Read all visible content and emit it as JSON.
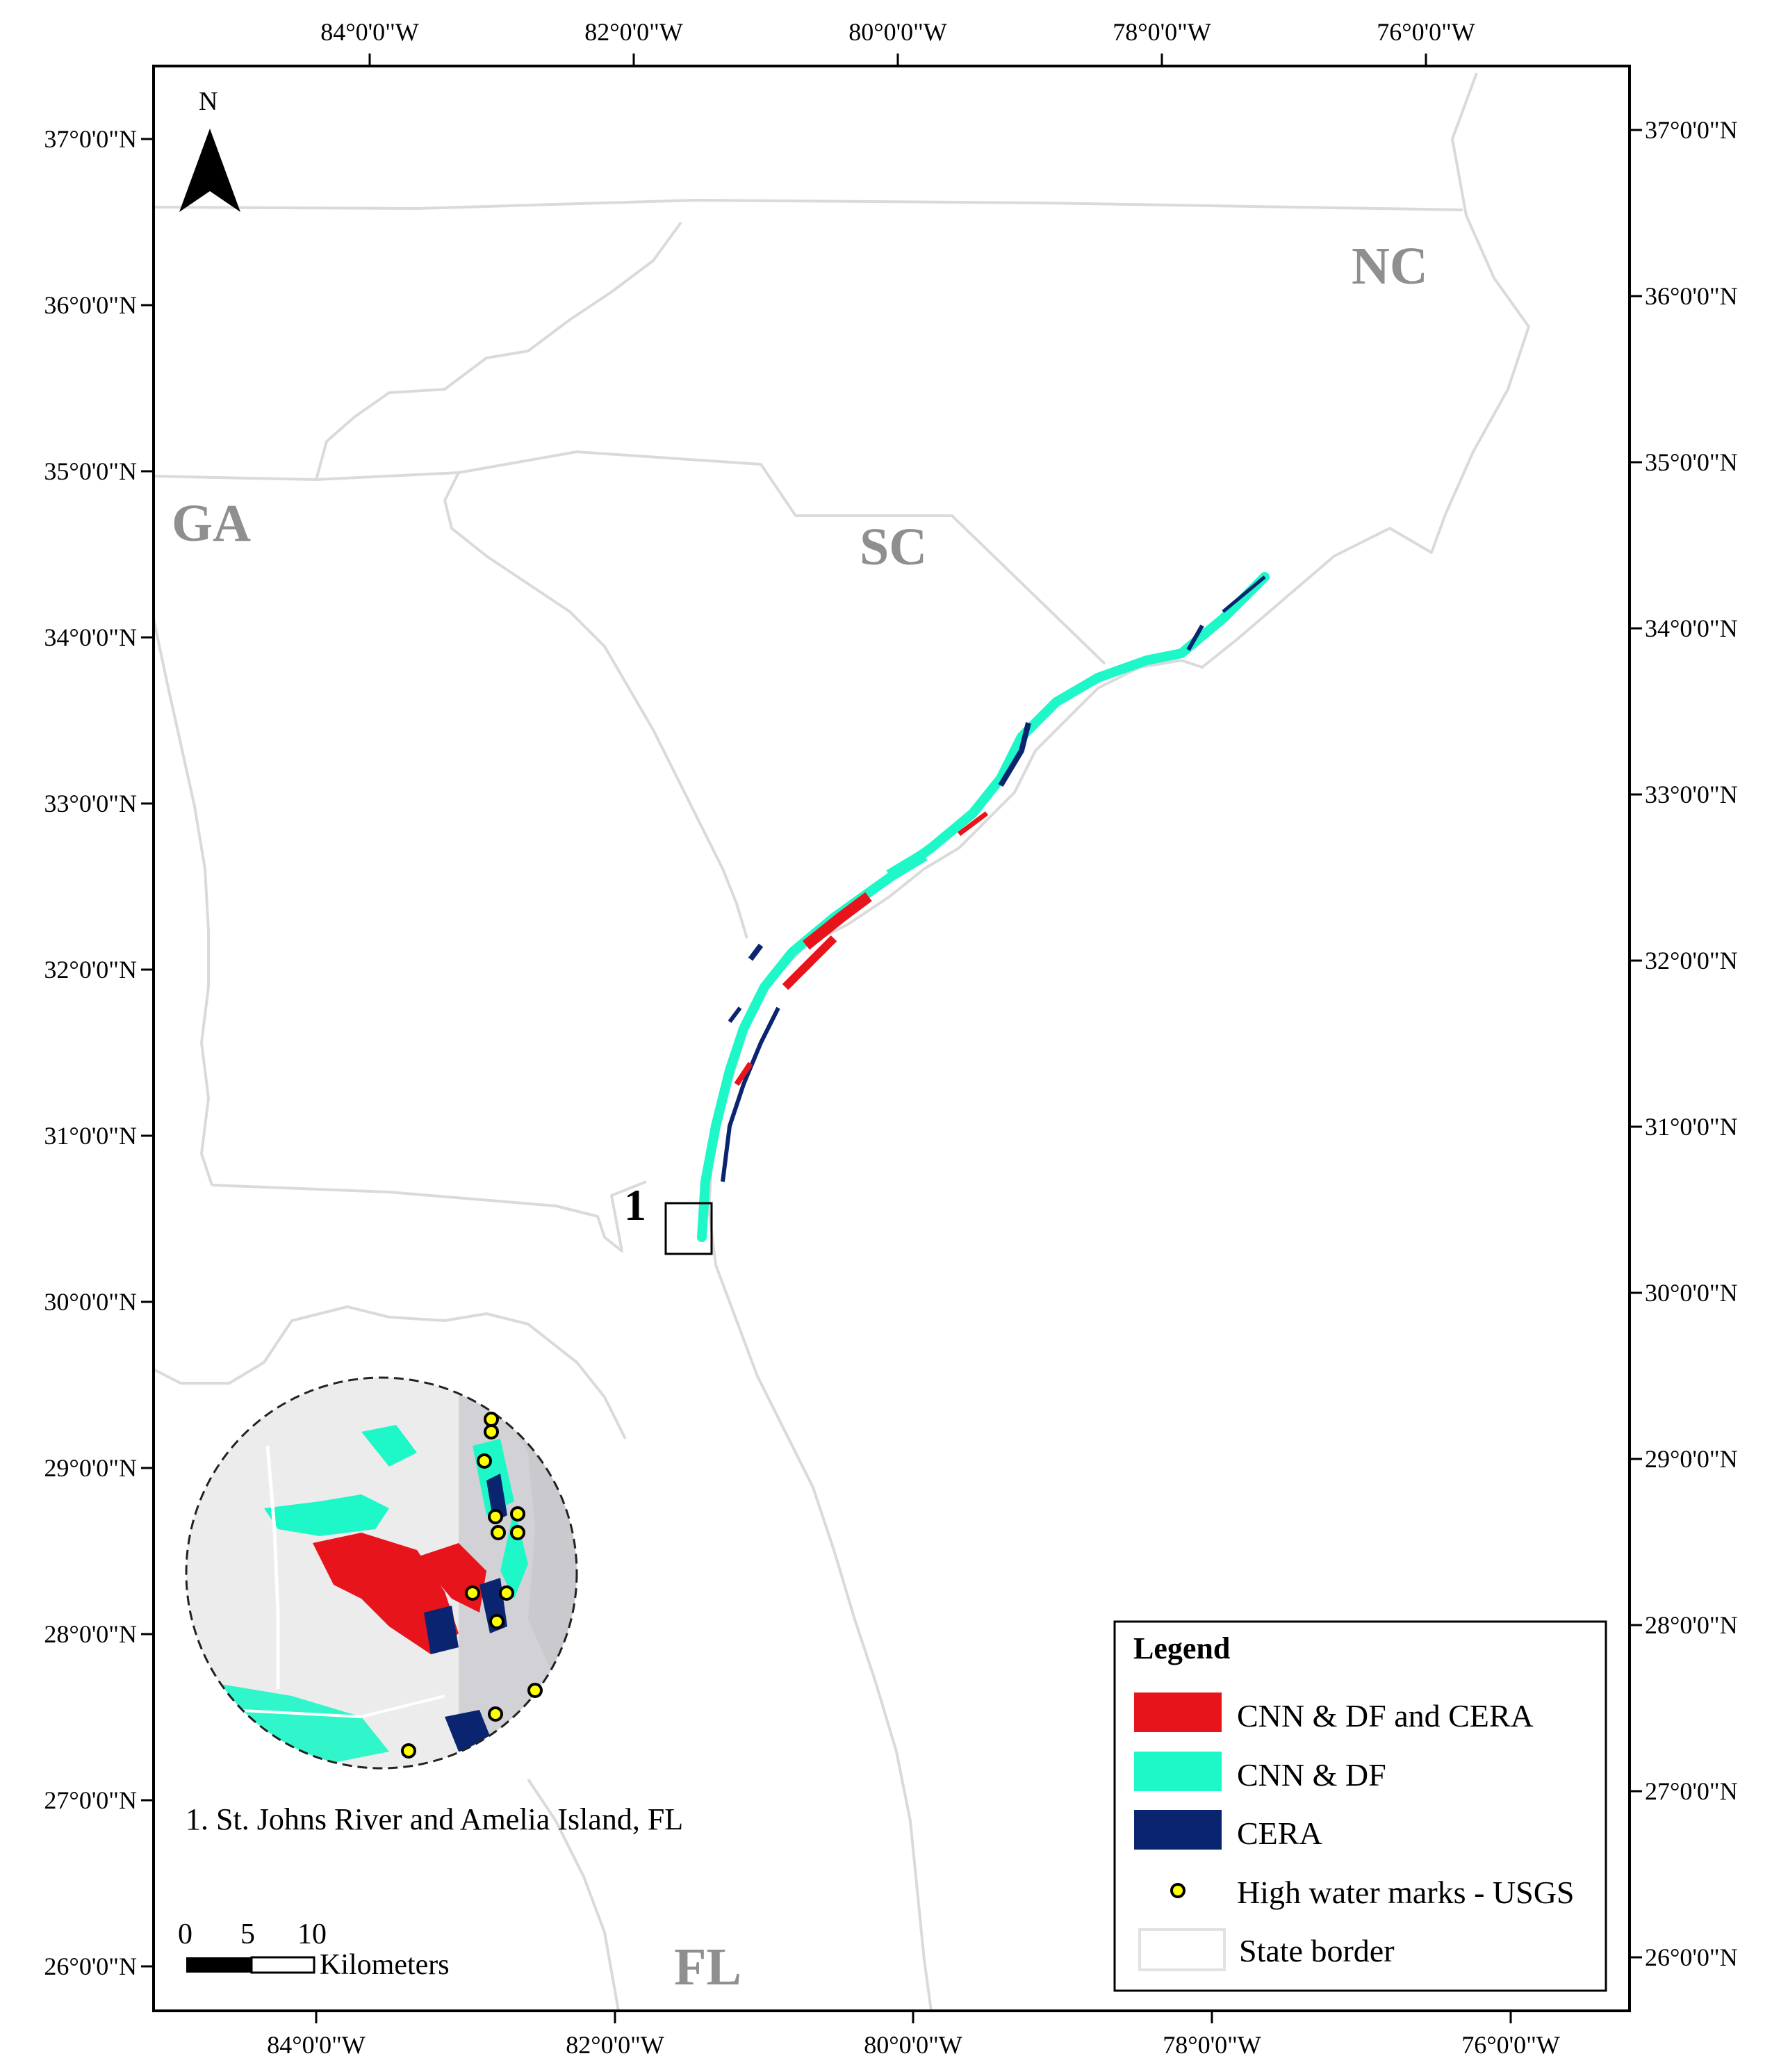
{
  "map": {
    "top_lon_labels": [
      "84°0'0\"W",
      "82°0'0\"W",
      "80°0'0\"W",
      "78°0'0\"W",
      "76°0'0\"W"
    ],
    "bottom_lon_labels": [
      "84°0'0\"W",
      "82°0'0\"W",
      "80°0'0\"W",
      "78°0'0\"W",
      "76°0'0\"W"
    ],
    "left_lat_labels": [
      "37°0'0\"N",
      "36°0'0\"N",
      "35°0'0\"N",
      "34°0'0\"N",
      "33°0'0\"N",
      "32°0'0\"N",
      "31°0'0\"N",
      "30°0'0\"N",
      "29°0'0\"N",
      "28°0'0\"N",
      "27°0'0\"N",
      "26°0'0\"N"
    ],
    "right_lat_labels": [
      "37°0'0\"N",
      "36°0'0\"N",
      "35°0'0\"N",
      "34°0'0\"N",
      "33°0'0\"N",
      "32°0'0\"N",
      "31°0'0\"N",
      "30°0'0\"N",
      "29°0'0\"N",
      "28°0'0\"N",
      "27°0'0\"N",
      "26°0'0\"N"
    ],
    "state_labels": {
      "nc": "NC",
      "sc": "SC",
      "ga": "GA",
      "fl": "FL"
    },
    "north_arrow_label": "N",
    "area_marker": "1",
    "inset_caption": "1. St. Johns River and Amelia Island, FL",
    "scale_bar": {
      "ticks": [
        "0",
        "5",
        "10"
      ],
      "unit": "Kilometers"
    }
  },
  "legend": {
    "title": "Legend",
    "items": [
      {
        "label": "CNN & DF and CERA",
        "color": "#e8141c"
      },
      {
        "label": "CNN & DF",
        "color": "#1ef7c8"
      },
      {
        "label": "CERA",
        "color": "#0a2470"
      },
      {
        "label": "High water marks - USGS",
        "color": "#ffff00"
      },
      {
        "label": "State border",
        "color": "#e6e6e6"
      }
    ]
  },
  "colors": {
    "state_border": "#d9d9d9",
    "state_label": "#8f8f8f",
    "ocean_inset": "#d4d4d8",
    "land_inset": "#ededed"
  }
}
